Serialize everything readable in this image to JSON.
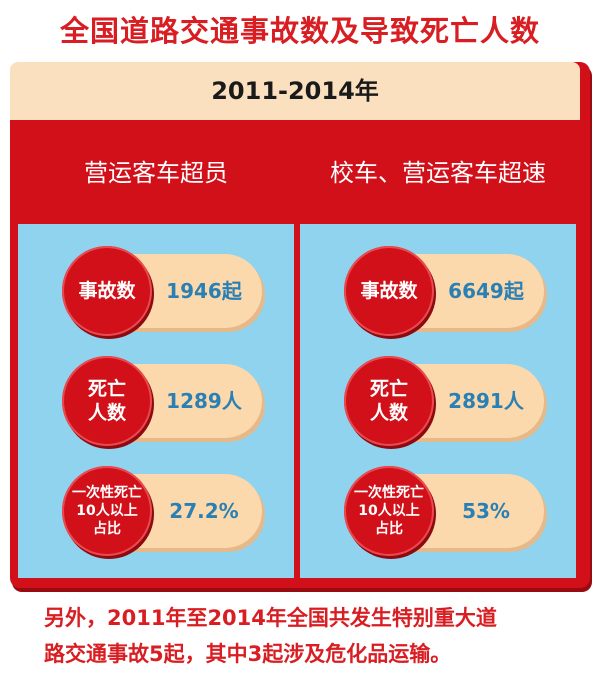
{
  "title": "全国道路交通事故数及导致死亡人数",
  "period": "2011-2014年",
  "columns": [
    {
      "header": "营运客车超员",
      "items": [
        {
          "label": "事故数",
          "value": "1946起"
        },
        {
          "label": "死亡\n人数",
          "value": "1289人"
        },
        {
          "label": "一次性死亡\n10人以上\n占比",
          "value": "27.2%"
        }
      ]
    },
    {
      "header": "校车、营运客车超速",
      "items": [
        {
          "label": "事故数",
          "value": "6649起"
        },
        {
          "label": "死亡\n人数",
          "value": "2891人"
        },
        {
          "label": "一次性死亡\n10人以上\n占比",
          "value": "53%"
        }
      ]
    }
  ],
  "footer": {
    "line1": "另外，2011年至2014年全国共发生特别重大道",
    "line2": "路交通事故5起，其中3起涉及危化品运输。"
  },
  "colors": {
    "red": "#d2101a",
    "title_red": "#d81e22",
    "cream": "#fbe0c0",
    "sky": "#8fd3ef",
    "value_blue": "#2a7fb4"
  }
}
